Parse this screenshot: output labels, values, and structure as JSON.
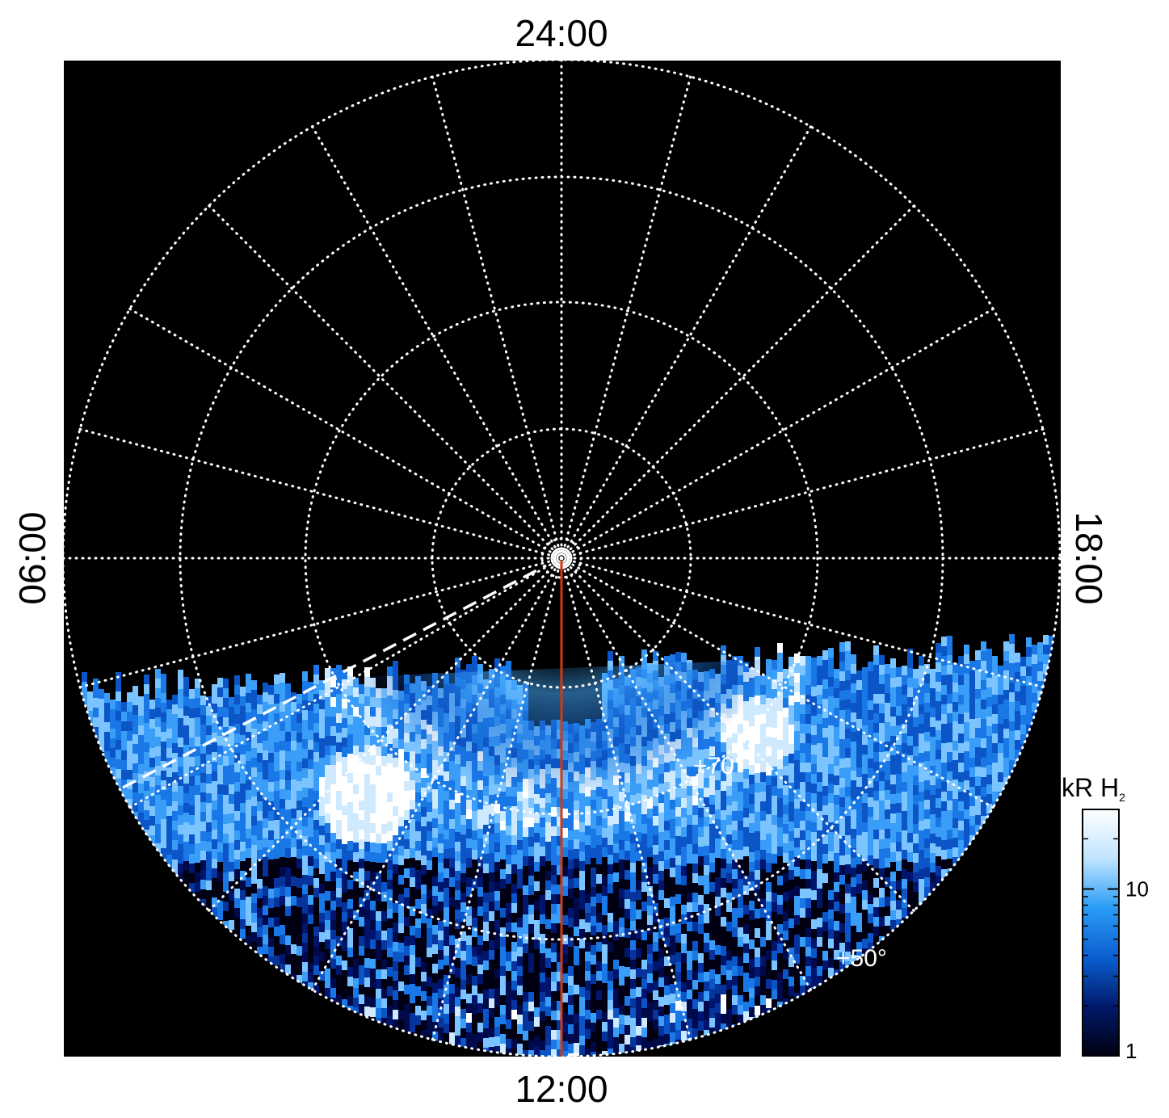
{
  "map": {
    "labels": {
      "top": "24:00",
      "bottom": "12:00",
      "left": "06:00",
      "right": "18:00"
    },
    "latitude_labels": {
      "inner": "+70°",
      "outer": "+50°"
    },
    "colors": {
      "background": "#000000",
      "grid": "#ffffff",
      "meridian_line": "#d03a12",
      "terminator": "#ffffff"
    }
  },
  "colorbar": {
    "unit_prefix": "kR H",
    "unit_subscript": "2",
    "ticks": [
      {
        "value": 1,
        "label": "1"
      },
      {
        "value": 10,
        "label": "10"
      }
    ],
    "range": [
      1,
      30
    ],
    "scale": "log",
    "colors": [
      "#000010",
      "#001a6b",
      "#0a5fd0",
      "#2a9cf5",
      "#bfe4ff",
      "#ffffff"
    ]
  }
}
